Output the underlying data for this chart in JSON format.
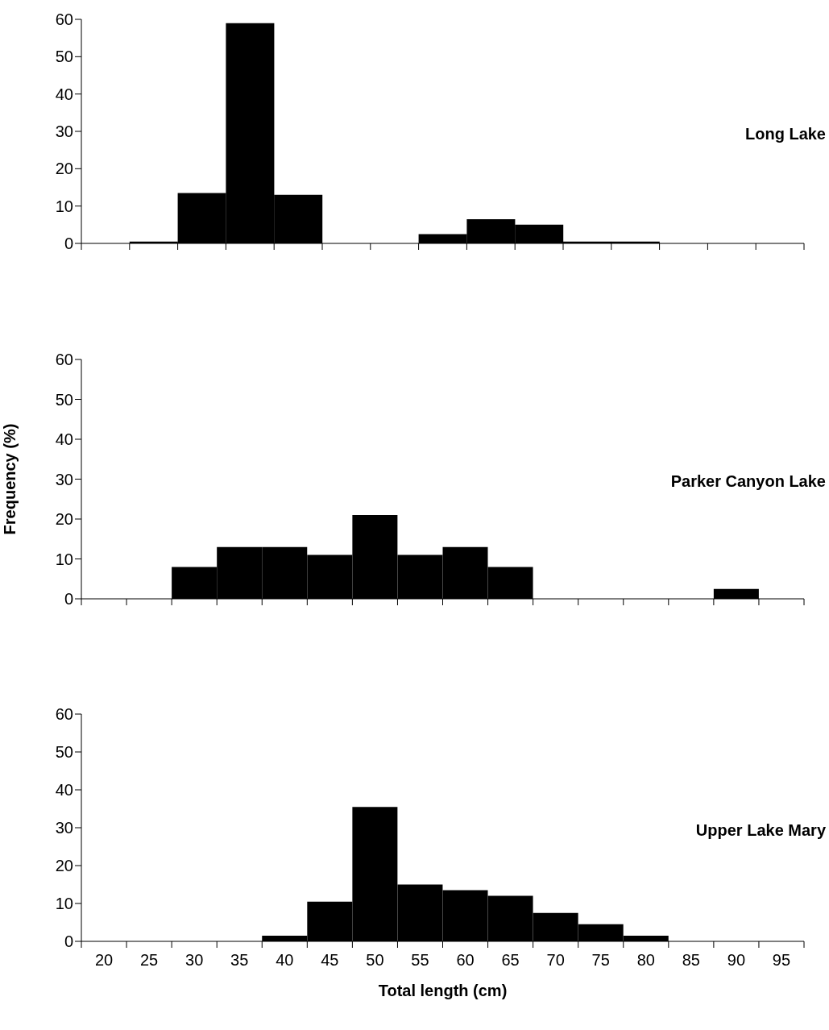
{
  "chart_data": [
    {
      "type": "bar",
      "title": "Long Lake",
      "categories": [
        null,
        null,
        null,
        null,
        null,
        null,
        null,
        null,
        null,
        null,
        null,
        null,
        null,
        null,
        null
      ],
      "values": [
        0,
        0.5,
        13.5,
        59,
        13,
        0,
        0,
        2.5,
        6.5,
        5,
        0.5,
        0.5,
        0,
        0,
        0
      ],
      "color": "#000000",
      "ylim": [
        0,
        60
      ],
      "yticks": [
        0,
        10,
        20,
        30,
        40,
        50,
        60
      ],
      "tick_labels": "y"
    },
    {
      "type": "bar",
      "title": "Parker Canyon Lake",
      "ylabel": "Frequency (%)",
      "categories": [
        null,
        null,
        null,
        null,
        null,
        null,
        null,
        null,
        null,
        null,
        null,
        null,
        null,
        null,
        null,
        null
      ],
      "values": [
        0,
        0,
        8,
        13,
        13,
        11,
        21,
        11,
        13,
        8,
        0,
        0,
        0,
        0,
        2.5,
        0
      ],
      "color": "#000000",
      "ylim": [
        0,
        60
      ],
      "yticks": [
        0,
        10,
        20,
        30,
        40,
        50,
        60
      ],
      "tick_labels": "y"
    },
    {
      "type": "bar",
      "title": "Upper Lake Mary",
      "xlabel": "Total length (cm)",
      "categories": [
        "20",
        "25",
        "30",
        "35",
        "40",
        "45",
        "50",
        "55",
        "60",
        "65",
        "70",
        "75",
        "80",
        "85",
        "90",
        "95"
      ],
      "values": [
        0,
        0,
        0,
        0,
        1.5,
        10.5,
        35.5,
        15,
        13.5,
        12,
        7.5,
        4.5,
        1.5,
        0,
        0,
        0
      ],
      "color": "#000000",
      "ylim": [
        0,
        60
      ],
      "yticks": [
        0,
        10,
        20,
        30,
        40,
        50,
        60
      ]
    }
  ]
}
